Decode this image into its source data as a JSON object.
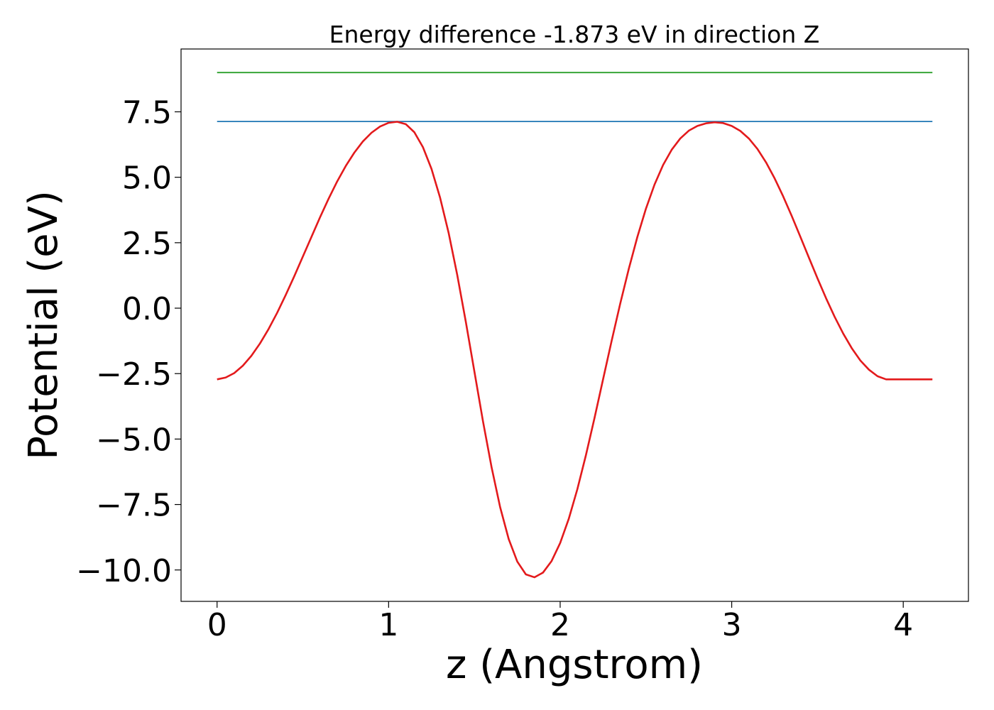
{
  "chart_data": {
    "type": "line",
    "title": "Energy difference -1.873 eV in direction Z",
    "xlabel": "z (Angstrom)",
    "ylabel": "Potential (eV)",
    "xlim": [
      -0.21,
      4.38
    ],
    "ylim": [
      -11.2,
      9.9
    ],
    "x_ticks": [
      {
        "value": 0,
        "label": "0"
      },
      {
        "value": 1,
        "label": "1"
      },
      {
        "value": 2,
        "label": "2"
      },
      {
        "value": 3,
        "label": "3"
      },
      {
        "value": 4,
        "label": "4"
      }
    ],
    "y_ticks": [
      {
        "value": -10.0,
        "label": "−10.0"
      },
      {
        "value": -7.5,
        "label": "−7.5"
      },
      {
        "value": -5.0,
        "label": "−5.0"
      },
      {
        "value": -2.5,
        "label": "−2.5"
      },
      {
        "value": 0.0,
        "label": "0.0"
      },
      {
        "value": 2.5,
        "label": "2.5"
      },
      {
        "value": 5.0,
        "label": "5.0"
      },
      {
        "value": 7.5,
        "label": "7.5"
      }
    ],
    "grid": false,
    "series": [
      {
        "color": "#2ca02c",
        "x": [
          0.0,
          4.17
        ],
        "y": [
          9.0,
          9.0
        ]
      },
      {
        "color": "#1f77b4",
        "x": [
          0.0,
          4.17
        ],
        "y": [
          7.13,
          7.13
        ]
      },
      {
        "color": "#e31a1c",
        "x": [
          0.0,
          0.05,
          0.1,
          0.15,
          0.2,
          0.25,
          0.3,
          0.35,
          0.4,
          0.45,
          0.5,
          0.55,
          0.6,
          0.65,
          0.7,
          0.75,
          0.8,
          0.85,
          0.9,
          0.95,
          1.0,
          1.05,
          1.1,
          1.15,
          1.2,
          1.25,
          1.3,
          1.35,
          1.4,
          1.45,
          1.5,
          1.55,
          1.6,
          1.65,
          1.7,
          1.75,
          1.8,
          1.85,
          1.9,
          1.95,
          2.0,
          2.05,
          2.1,
          2.15,
          2.2,
          2.25,
          2.3,
          2.35,
          2.4,
          2.45,
          2.5,
          2.55,
          2.6,
          2.65,
          2.7,
          2.75,
          2.8,
          2.85,
          2.9,
          2.95,
          3.0,
          3.05,
          3.1,
          3.15,
          3.2,
          3.25,
          3.3,
          3.35,
          3.4,
          3.45,
          3.5,
          3.55,
          3.6,
          3.65,
          3.7,
          3.75,
          3.8,
          3.85,
          3.9,
          3.95,
          4.0,
          4.05,
          4.1,
          4.17
        ],
        "y": [
          -2.72,
          -2.65,
          -2.48,
          -2.2,
          -1.82,
          -1.35,
          -0.8,
          -0.18,
          0.5,
          1.22,
          1.97,
          2.72,
          3.47,
          4.18,
          4.84,
          5.43,
          5.94,
          6.37,
          6.7,
          6.94,
          7.08,
          7.12,
          7.03,
          6.72,
          6.15,
          5.32,
          4.22,
          2.87,
          1.27,
          -0.52,
          -2.42,
          -4.32,
          -6.07,
          -7.6,
          -8.82,
          -9.68,
          -10.17,
          -10.28,
          -10.1,
          -9.66,
          -8.97,
          -8.05,
          -6.92,
          -5.62,
          -4.2,
          -2.72,
          -1.25,
          0.17,
          1.5,
          2.72,
          3.8,
          4.72,
          5.47,
          6.05,
          6.48,
          6.78,
          6.96,
          7.06,
          7.1,
          7.07,
          6.96,
          6.77,
          6.48,
          6.08,
          5.57,
          4.96,
          4.27,
          3.52,
          2.73,
          1.93,
          1.14,
          0.38,
          -0.33,
          -0.97,
          -1.53,
          -2.0,
          -2.35,
          -2.6,
          -2.72,
          -2.72,
          -2.72,
          -2.72,
          -2.72,
          -2.72
        ]
      }
    ]
  }
}
